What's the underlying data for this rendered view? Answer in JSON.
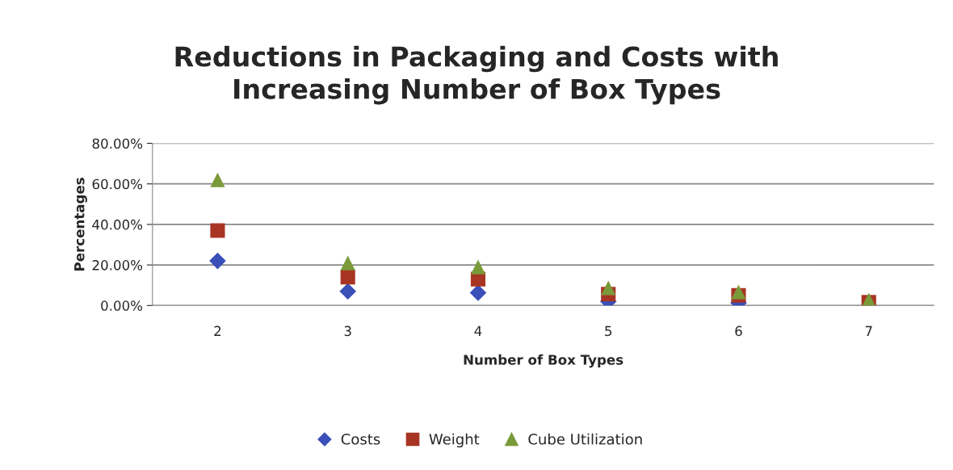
{
  "chart_data": {
    "type": "scatter",
    "title": "Reductions in Packaging and Costs with\nIncreasing Number of Box Types",
    "xlabel": "Number of Box Types",
    "ylabel": "Percentages",
    "categories": [
      "2",
      "3",
      "4",
      "5",
      "6",
      "7"
    ],
    "series": [
      {
        "name": "Costs",
        "color": "#3a4fb8",
        "marker": "diamond",
        "values": [
          22,
          7,
          6.3,
          2,
          1.3,
          null
        ]
      },
      {
        "name": "Weight",
        "color": "#a83424",
        "marker": "square",
        "values": [
          37,
          14,
          13,
          5.6,
          5,
          1.6
        ]
      },
      {
        "name": "Cube Utilization",
        "color": "#7a9a3a",
        "marker": "triangle",
        "values": [
          62,
          21,
          19,
          8.7,
          6.7,
          2.7
        ]
      }
    ],
    "ylim": [
      0,
      80
    ],
    "yticks": [
      {
        "value": 0,
        "label": "0.00%"
      },
      {
        "value": 20,
        "label": "20.00%"
      },
      {
        "value": 40,
        "label": "40.00%"
      },
      {
        "value": 60,
        "label": "60.00%"
      },
      {
        "value": 80,
        "label": "80.00%"
      }
    ],
    "grid": "y",
    "legend": "bottom"
  }
}
